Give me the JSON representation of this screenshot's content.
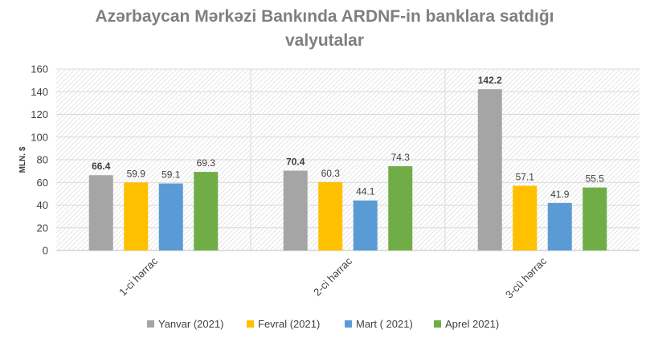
{
  "chart_data": {
    "type": "bar",
    "title_lines": [
      "Azərbaycan Mərkəzi Bankında ARDNF-in banklara satdığı",
      "valyutalar"
    ],
    "xlabel": "",
    "ylabel": "MLN. $",
    "ylim": [
      0,
      160
    ],
    "yticks": [
      0,
      20,
      40,
      60,
      80,
      100,
      120,
      140,
      160
    ],
    "grid": true,
    "legend_position": "bottom",
    "categories": [
      "1-ci hərrac",
      "2-ci hərrac",
      "3-cü hərrac"
    ],
    "series": [
      {
        "name": "Yanvar (2021)",
        "color": "#a5a5a5",
        "values": [
          66.4,
          70.4,
          142.2
        ],
        "labels": [
          "66.4",
          "70.4",
          "142.2"
        ]
      },
      {
        "name": "Fevral (2021)",
        "color": "#ffc000",
        "values": [
          59.9,
          60.3,
          57.1
        ],
        "labels": [
          "59.9",
          "60.3",
          "57.1"
        ]
      },
      {
        "name": "Mart ( 2021)",
        "color": "#5b9bd5",
        "values": [
          59.1,
          44.1,
          41.9
        ],
        "labels": [
          "59.1",
          "44.1",
          "41.9"
        ]
      },
      {
        "name": "Aprel 2021)",
        "color": "#70ad47",
        "values": [
          69.3,
          74.3,
          55.5
        ],
        "labels": [
          "69.3",
          "74.3",
          "55.5"
        ]
      }
    ]
  }
}
